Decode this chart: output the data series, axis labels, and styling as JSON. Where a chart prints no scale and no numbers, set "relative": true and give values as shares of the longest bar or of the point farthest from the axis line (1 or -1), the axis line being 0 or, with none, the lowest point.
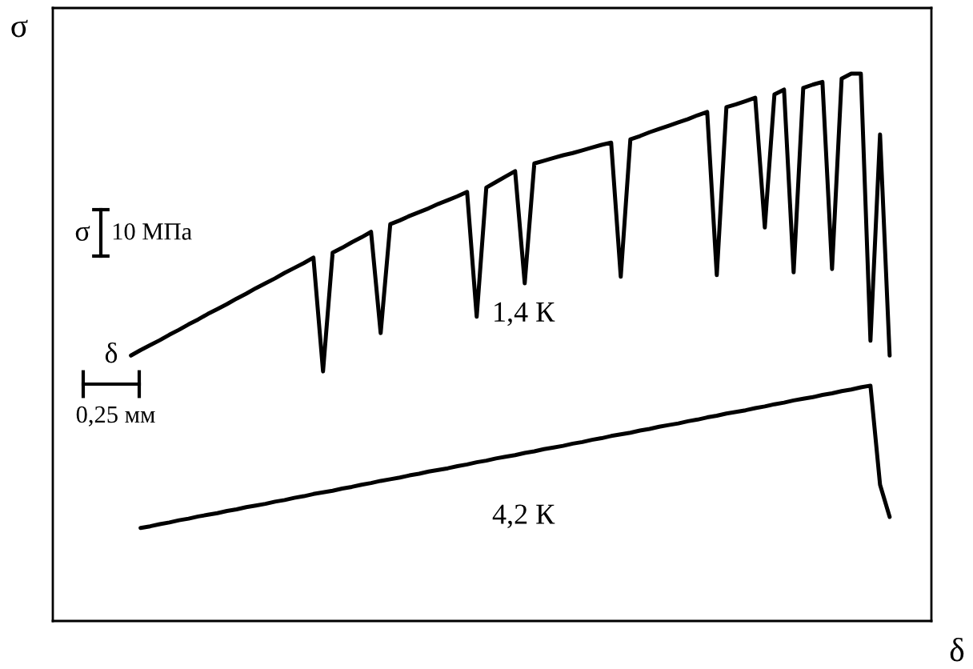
{
  "chart_data": {
    "type": "line",
    "relative": true,
    "xlabel": "δ",
    "ylabel": "σ",
    "marker": "none",
    "line_style": "solid",
    "annotations": [
      "σ",
      "10 МПа",
      "δ",
      "0,25 мм"
    ],
    "categories": [
      null,
      null,
      null,
      null,
      null,
      null,
      null,
      null,
      null,
      null,
      null,
      null,
      null,
      null,
      null,
      null,
      null,
      null,
      null,
      null,
      null,
      null,
      null,
      null,
      null,
      null,
      null,
      null,
      null,
      null,
      null,
      null,
      null,
      null,
      null,
      null,
      null,
      null,
      null,
      null,
      null,
      null,
      null,
      null,
      null,
      null,
      null,
      null,
      null,
      null,
      null,
      null,
      null,
      null,
      null,
      null,
      null,
      null,
      null,
      null,
      null,
      null,
      null,
      null,
      null,
      null,
      null,
      null,
      null,
      null,
      null,
      null,
      null,
      null,
      null,
      null,
      null,
      null,
      null,
      null
    ],
    "series": [
      {
        "name": "1,4 К",
        "color": "#000000",
        "values": [
          0.485,
          0.495,
          0.504,
          0.513,
          0.523,
          0.532,
          0.542,
          0.551,
          0.561,
          0.57,
          0.579,
          0.589,
          0.598,
          0.608,
          0.617,
          0.626,
          0.636,
          0.645,
          0.654,
          0.664,
          0.456,
          0.673,
          0.682,
          0.692,
          0.701,
          0.711,
          0.526,
          0.725,
          0.732,
          0.74,
          0.747,
          0.754,
          0.762,
          0.769,
          0.776,
          0.784,
          0.556,
          0.792,
          0.802,
          0.812,
          0.822,
          0.617,
          0.836,
          0.841,
          0.846,
          0.851,
          0.855,
          0.86,
          0.865,
          0.87,
          0.874,
          0.629,
          0.88,
          0.886,
          0.893,
          0.899,
          0.905,
          0.911,
          0.917,
          0.924,
          0.93,
          0.632,
          0.939,
          0.944,
          0.95,
          0.956,
          0.719,
          0.962,
          0.971,
          0.637,
          0.974,
          0.98,
          0.985,
          0.643,
          0.991,
          1.0,
          1.0,
          0.512,
          0.889,
          0.485
        ]
      },
      {
        "name": "4,2 К",
        "color": "#000000",
        "values": [
          null,
          0.17,
          0.173,
          0.177,
          0.18,
          0.184,
          0.187,
          0.191,
          0.194,
          0.197,
          0.201,
          0.204,
          0.208,
          0.211,
          0.214,
          0.218,
          0.221,
          0.225,
          0.228,
          0.232,
          0.235,
          0.238,
          0.242,
          0.245,
          0.249,
          0.252,
          0.256,
          0.259,
          0.262,
          0.266,
          0.269,
          0.273,
          0.276,
          0.279,
          0.283,
          0.286,
          0.29,
          0.293,
          0.297,
          0.3,
          0.303,
          0.307,
          0.31,
          0.314,
          0.317,
          0.32,
          0.324,
          0.327,
          0.331,
          0.334,
          0.338,
          0.341,
          0.344,
          0.348,
          0.351,
          0.355,
          0.358,
          0.361,
          0.365,
          0.368,
          0.372,
          0.375,
          0.379,
          0.382,
          0.385,
          0.389,
          0.392,
          0.396,
          0.399,
          0.403,
          0.406,
          0.409,
          0.413,
          0.416,
          0.42,
          0.423,
          0.427,
          0.43,
          0.249,
          0.19
        ]
      }
    ]
  }
}
